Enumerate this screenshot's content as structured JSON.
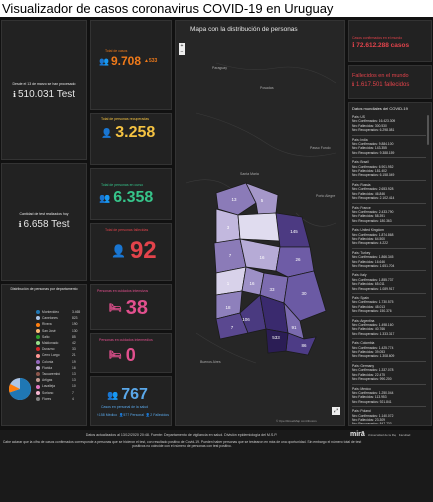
{
  "header": {
    "title": "Visualizador de casos coronavirus COVID-19 en Uruguay"
  },
  "tests": {
    "since_label": "Desde el 13 de marzo se han procesado",
    "total_value": "510.031 Test",
    "today_label": "Cantidad de test realizados hoy",
    "today_value": "6.658 Test"
  },
  "kpis": {
    "total_cases": {
      "label": "Total de casos",
      "value": "9.708",
      "delta": "533"
    },
    "recovered": {
      "label": "Total de personas recuperadas",
      "value": "3.258"
    },
    "in_course": {
      "label": "Total de personas en curso",
      "value": "6.358"
    },
    "deaths": {
      "label": "Total de personas fallecidas",
      "value": "92"
    },
    "intensive_care": {
      "label": "Personas en cuidados intensivos",
      "value": "38"
    },
    "intermediate_care": {
      "label": "Personas en cuidados intermedios",
      "value": "0"
    },
    "health_staff": {
      "label": "Casos en personal de la salud",
      "value": "767",
      "sub1": "158",
      "sub1_label": "Médico",
      "sub2": "577",
      "sub2_label": "Personal",
      "sub3": "2",
      "sub3_label": "Fallecidos"
    }
  },
  "departments_panel": {
    "title": "Distribución de personas por departamento",
    "items": [
      {
        "name": "Montevideo",
        "value": "3.465",
        "color": "#1f77b4"
      },
      {
        "name": "Canelones",
        "value": "823",
        "color": "#aec7e8"
      },
      {
        "name": "Rivera",
        "value": "190",
        "color": "#ff7f0e"
      },
      {
        "name": "San José",
        "value": "130",
        "color": "#ffbb78"
      },
      {
        "name": "Salto",
        "value": "85",
        "color": "#2ca02c"
      },
      {
        "name": "Maldonado",
        "value": "42",
        "color": "#98df8a"
      },
      {
        "name": "Durazno",
        "value": "33",
        "color": "#d62728"
      },
      {
        "name": "Cerro Largo",
        "value": "21",
        "color": "#ff9896"
      },
      {
        "name": "Colonia",
        "value": "19",
        "color": "#9467bd"
      },
      {
        "name": "Florida",
        "value": "16",
        "color": "#c5b0d5"
      },
      {
        "name": "Tacuarembó",
        "value": "13",
        "color": "#8c564b"
      },
      {
        "name": "Artigas",
        "value": "13",
        "color": "#c49c94"
      },
      {
        "name": "Lavalleja",
        "value": "10",
        "color": "#e377c2"
      },
      {
        "name": "Soriano",
        "value": "7",
        "color": "#f7b6d2"
      },
      {
        "name": "Flores",
        "value": "4",
        "color": "#7f7f7f"
      }
    ]
  },
  "map_panel": {
    "title": "Mapa con la distribución de personas",
    "labels": [
      "13",
      "5",
      "3",
      "145",
      "7",
      "16",
      "26",
      "1",
      "16",
      "30",
      "33",
      "18",
      "106",
      "533",
      "91",
      "86",
      "7"
    ],
    "place_labels": [
      "Paraguay",
      "Posadas",
      "Santa Maria",
      "Passo Fundo",
      "Porto Alegre",
      "Buenos Aires"
    ],
    "attribution": "© OpenStreetMap contributors"
  },
  "world": {
    "confirmed_label": "Casos confirmados en el mundo",
    "confirmed_value": "72.612.288 casos",
    "deaths_label": "Fallecidos en el mundo",
    "deaths_value": "1.617.501 fallecidos",
    "list_title": "Datos mundiales del COVID-19",
    "countries": [
      {
        "pais": "País: US",
        "conf": "Nro Confirmados: 16.423.309",
        "fall": "Nro Fallecidos: 300.530",
        "rec": "Nro Recuperados: 6.298.081"
      },
      {
        "pais": "País: India",
        "conf": "Nro Confirmados: 9.884.100",
        "fall": "Nro Fallecidos: 143.355",
        "rec": "Nro Recuperados: 9.388.159"
      },
      {
        "pais": "País: Brazil",
        "conf": "Nro Confirmados: 6.901.952",
        "fall": "Nro Fallecidos: 181.402",
        "rec": "Nro Recuperados: 6.158.049"
      },
      {
        "pais": "País: Russia",
        "conf": "Nro Confirmados: 2.653.928",
        "fall": "Nro Fallecidos: 46.846",
        "rec": "Nro Recuperados: 2.102.414"
      },
      {
        "pais": "País: France",
        "conf": "Nro Confirmados: 2.433.790",
        "fall": "Nro Fallecidos: 58.391",
        "rec": "Nro Recuperados: 180.363"
      },
      {
        "pais": "País: United Kingdom",
        "conf": "Nro Confirmados: 1.874.868",
        "fall": "Nro Fallecidos: 64.500",
        "rec": "Nro Recuperados: 4.222"
      },
      {
        "pais": "País: Turkey",
        "conf": "Nro Confirmados: 1.866.345",
        "fall": "Nro Fallecidos: 16.646",
        "rec": "Nro Recuperados: 1.651.704"
      },
      {
        "pais": "País: Italy",
        "conf": "Nro Confirmados: 1.855.737",
        "fall": "Nro Fallecidos: 65.011",
        "rec": "Nro Recuperados: 1.089.917"
      },
      {
        "pais": "País: Spain",
        "conf": "Nro Confirmados: 1.730.575",
        "fall": "Nro Fallecidos: 48.013",
        "rec": "Nro Recuperados: 150.376"
      },
      {
        "pais": "País: Argentina",
        "conf": "Nro Confirmados: 1.498.160",
        "fall": "Nro Fallecidos: 40.766",
        "rec": "Nro Recuperados: 1.333.317"
      },
      {
        "pais": "País: Colombia",
        "conf": "Nro Confirmados: 1.425.774",
        "fall": "Nro Fallecidos: 39.053",
        "rec": "Nro Recuperados: 1.308.609"
      },
      {
        "pais": "País: Germany",
        "conf": "Nro Confirmados: 1.337.078",
        "fall": "Nro Fallecidos: 22.475",
        "rec": "Nro Recuperados: 990.200"
      },
      {
        "pais": "País: Mexico",
        "conf": "Nro Confirmados: 1.250.044",
        "fall": "Nro Fallecidos: 113.953",
        "rec": "Nro Recuperados: 921.841"
      },
      {
        "pais": "País: Poland",
        "conf": "Nro Confirmados: 1.140.072",
        "fall": "Nro Fallecidos: 23.309",
        "rec": "Nro Recuperados: 847.733"
      }
    ]
  },
  "footer": {
    "line1": "Datos actualizados al 13/12/2020 20:48. Fuente: Departamento de vigilancia en salud. División epidemiología del M.S.P.",
    "line2": "Cabe aclarar que la cifra de casos confirmados corresponde a personas que se hicieron el test, con resultado positivo de Covid-19. Pueden haber personas que se testearon en más de una oportunidad. Sin embargo el número total de test positivos no coincide con el número de personas con test positivo.",
    "logos": [
      "mirā",
      "Universidad de la República",
      "Facultad"
    ]
  }
}
